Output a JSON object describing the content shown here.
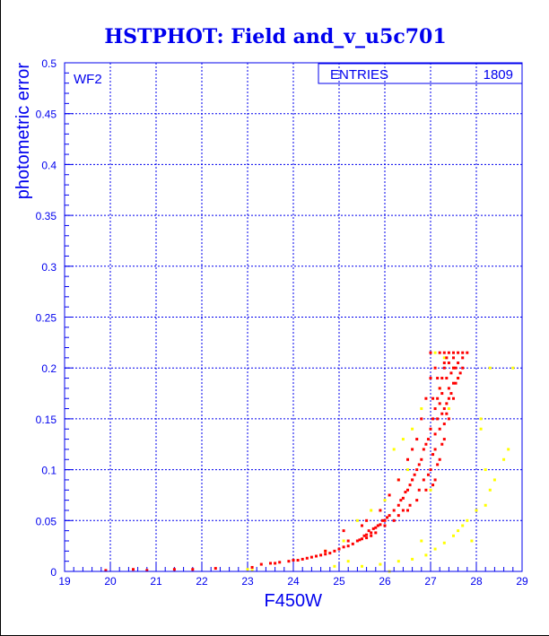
{
  "chart_data": {
    "type": "scatter",
    "title": "HSTPHOT: Field and_v_u5c701",
    "xlabel": "F450W",
    "ylabel": "photometric error",
    "xlim": [
      19,
      29
    ],
    "ylim": [
      0,
      0.5
    ],
    "grid": true,
    "x_ticks": [
      "19",
      "20",
      "21",
      "22",
      "23",
      "24",
      "25",
      "26",
      "27",
      "28",
      "29"
    ],
    "y_ticks": [
      "0",
      "0.05",
      "0.1",
      "0.15",
      "0.2",
      "0.25",
      "0.3",
      "0.35",
      "0.4",
      "0.45",
      "0.5"
    ],
    "annotation": "WF2",
    "stats_box": {
      "label": "ENTRIES",
      "value": "1809",
      "placement": "top-right"
    },
    "series": [
      {
        "name": "red",
        "color": "#ff0000",
        "points": [
          [
            19.9,
            0.001
          ],
          [
            20.5,
            0.002
          ],
          [
            20.8,
            0.001
          ],
          [
            21.4,
            0.002
          ],
          [
            21.8,
            0.002
          ],
          [
            22.3,
            0.003
          ],
          [
            23.1,
            0.004
          ],
          [
            23.3,
            0.007
          ],
          [
            23.5,
            0.008
          ],
          [
            23.6,
            0.008
          ],
          [
            23.7,
            0.009
          ],
          [
            23.9,
            0.01
          ],
          [
            24.0,
            0.011
          ],
          [
            24.1,
            0.011
          ],
          [
            24.2,
            0.012
          ],
          [
            24.3,
            0.013
          ],
          [
            24.4,
            0.014
          ],
          [
            24.5,
            0.015
          ],
          [
            24.6,
            0.016
          ],
          [
            24.7,
            0.017
          ],
          [
            24.8,
            0.018
          ],
          [
            24.9,
            0.02
          ],
          [
            25.0,
            0.022
          ],
          [
            25.1,
            0.024
          ],
          [
            25.2,
            0.025
          ],
          [
            25.3,
            0.027
          ],
          [
            25.4,
            0.03
          ],
          [
            25.45,
            0.031
          ],
          [
            25.5,
            0.032
          ],
          [
            25.55,
            0.035
          ],
          [
            25.6,
            0.036
          ],
          [
            25.65,
            0.04
          ],
          [
            25.7,
            0.038
          ],
          [
            25.75,
            0.042
          ],
          [
            25.8,
            0.043
          ],
          [
            25.85,
            0.045
          ],
          [
            25.9,
            0.046
          ],
          [
            25.95,
            0.05
          ],
          [
            26.0,
            0.05
          ],
          [
            26.05,
            0.053
          ],
          [
            26.1,
            0.055
          ],
          [
            26.2,
            0.06
          ],
          [
            26.3,
            0.065
          ],
          [
            26.35,
            0.07
          ],
          [
            26.4,
            0.072
          ],
          [
            26.45,
            0.078
          ],
          [
            26.5,
            0.08
          ],
          [
            26.55,
            0.085
          ],
          [
            26.6,
            0.09
          ],
          [
            26.65,
            0.095
          ],
          [
            26.7,
            0.1
          ],
          [
            26.75,
            0.105
          ],
          [
            26.8,
            0.11
          ],
          [
            26.85,
            0.12
          ],
          [
            26.9,
            0.125
          ],
          [
            26.95,
            0.13
          ],
          [
            27.0,
            0.14
          ],
          [
            27.05,
            0.15
          ],
          [
            27.1,
            0.16
          ],
          [
            27.15,
            0.17
          ],
          [
            27.2,
            0.18
          ],
          [
            27.25,
            0.19
          ],
          [
            27.3,
            0.2
          ],
          [
            27.35,
            0.21
          ],
          [
            25.5,
            0.045
          ],
          [
            25.9,
            0.06
          ],
          [
            26.1,
            0.075
          ],
          [
            26.3,
            0.09
          ],
          [
            26.5,
            0.11
          ],
          [
            26.7,
            0.13
          ],
          [
            26.8,
            0.15
          ],
          [
            26.9,
            0.17
          ],
          [
            27.0,
            0.19
          ],
          [
            27.1,
            0.2
          ],
          [
            26.6,
            0.12
          ],
          [
            25.6,
            0.05
          ],
          [
            25.2,
            0.03
          ],
          [
            24.7,
            0.02
          ],
          [
            25.1,
            0.04
          ],
          [
            27.0,
            0.215
          ],
          [
            27.2,
            0.215
          ],
          [
            27.4,
            0.215
          ],
          [
            27.6,
            0.215
          ],
          [
            27.8,
            0.215
          ],
          [
            27.5,
            0.2
          ],
          [
            27.7,
            0.21
          ],
          [
            27.6,
            0.19
          ],
          [
            27.4,
            0.18
          ],
          [
            27.5,
            0.17
          ],
          [
            27.3,
            0.16
          ],
          [
            27.4,
            0.15
          ],
          [
            27.2,
            0.14
          ],
          [
            27.3,
            0.13
          ],
          [
            27.1,
            0.12
          ],
          [
            27.2,
            0.11
          ],
          [
            27.0,
            0.1
          ],
          [
            27.1,
            0.09
          ],
          [
            26.9,
            0.08
          ],
          [
            26.7,
            0.07
          ],
          [
            26.5,
            0.06
          ],
          [
            26.3,
            0.055
          ],
          [
            26.6,
            0.09
          ],
          [
            27.7,
            0.2
          ],
          [
            27.65,
            0.195
          ],
          [
            27.55,
            0.185
          ],
          [
            27.45,
            0.175
          ],
          [
            27.35,
            0.165
          ],
          [
            27.25,
            0.155
          ],
          [
            27.5,
            0.21
          ],
          [
            27.3,
            0.205
          ],
          [
            27.15,
            0.19
          ],
          [
            27.05,
            0.17
          ],
          [
            27.3,
            0.215
          ],
          [
            27.5,
            0.215
          ],
          [
            27.7,
            0.215
          ],
          [
            27.6,
            0.205
          ],
          [
            27.4,
            0.205
          ],
          [
            27.45,
            0.195
          ],
          [
            27.55,
            0.2
          ],
          [
            27.35,
            0.19
          ],
          [
            27.5,
            0.185
          ],
          [
            27.25,
            0.175
          ],
          [
            27.4,
            0.17
          ],
          [
            27.2,
            0.165
          ],
          [
            27.35,
            0.155
          ],
          [
            27.15,
            0.15
          ],
          [
            27.3,
            0.145
          ],
          [
            27.1,
            0.135
          ],
          [
            27.25,
            0.125
          ],
          [
            27.05,
            0.115
          ],
          [
            27.15,
            0.105
          ],
          [
            26.95,
            0.095
          ],
          [
            27.05,
            0.085
          ],
          [
            26.85,
            0.09
          ],
          [
            26.75,
            0.08
          ],
          [
            26.55,
            0.065
          ],
          [
            26.4,
            0.06
          ],
          [
            26.2,
            0.05
          ],
          [
            26.0,
            0.045
          ],
          [
            25.8,
            0.038
          ],
          [
            25.7,
            0.035
          ],
          [
            25.6,
            0.033
          ]
        ]
      },
      {
        "name": "yellow",
        "color": "#ffff00",
        "points": [
          [
            27.1,
            0.215
          ],
          [
            27.3,
            0.21
          ],
          [
            27.5,
            0.2
          ],
          [
            27.6,
            0.19
          ],
          [
            27.2,
            0.18
          ],
          [
            27.4,
            0.16
          ],
          [
            26.8,
            0.16
          ],
          [
            26.6,
            0.14
          ],
          [
            26.4,
            0.13
          ],
          [
            26.2,
            0.12
          ],
          [
            26.5,
            0.1
          ],
          [
            26.3,
            0.09
          ],
          [
            26.0,
            0.07
          ],
          [
            25.7,
            0.06
          ],
          [
            25.4,
            0.05
          ],
          [
            25.1,
            0.03
          ],
          [
            24.7,
            0.02
          ],
          [
            25.2,
            0.01
          ],
          [
            25.5,
            0.005
          ],
          [
            25.9,
            0.007
          ],
          [
            26.3,
            0.01
          ],
          [
            26.6,
            0.012
          ],
          [
            26.9,
            0.016
          ],
          [
            27.1,
            0.022
          ],
          [
            27.3,
            0.028
          ],
          [
            27.5,
            0.035
          ],
          [
            27.6,
            0.04
          ],
          [
            27.8,
            0.05
          ],
          [
            28.0,
            0.06
          ],
          [
            28.2,
            0.065
          ],
          [
            28.3,
            0.08
          ],
          [
            28.4,
            0.09
          ],
          [
            28.6,
            0.11
          ],
          [
            28.7,
            0.12
          ],
          [
            28.2,
            0.1
          ],
          [
            28.1,
            0.14
          ],
          [
            28.3,
            0.2
          ],
          [
            28.8,
            0.2
          ],
          [
            23.0,
            0.002
          ],
          [
            23.1,
            0.001
          ],
          [
            24.9,
            0.005
          ],
          [
            26.1,
            0.0
          ],
          [
            27.9,
            0.03
          ],
          [
            28.1,
            0.15
          ],
          [
            27.7,
            0.045
          ],
          [
            26.8,
            0.03
          ],
          [
            27.0,
            0.08
          ]
        ]
      }
    ]
  }
}
